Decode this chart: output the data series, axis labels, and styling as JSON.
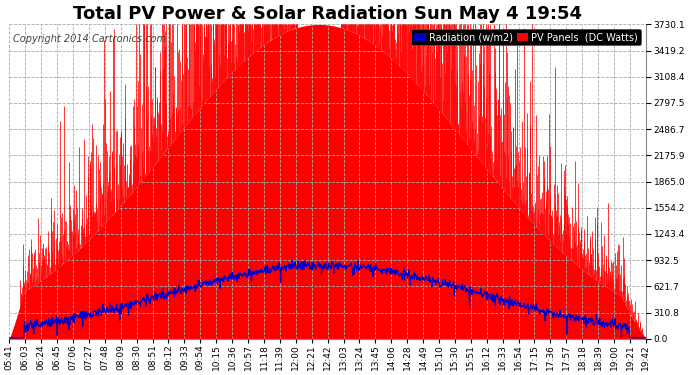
{
  "title": "Total PV Power & Solar Radiation Sun May 4 19:54",
  "copyright": "Copyright 2014 Cartronics.com",
  "legend_radiation": "Radiation (w/m2)",
  "legend_pv": "PV Panels  (DC Watts)",
  "bg_color": "#ffffff",
  "plot_bg_color": "#ffffff",
  "pv_color": "#ff0000",
  "radiation_color": "#0000cc",
  "ytick_vals": [
    0.0,
    310.8,
    621.7,
    932.5,
    1243.4,
    1554.2,
    1865.0,
    2175.9,
    2486.7,
    2797.5,
    3108.4,
    3419.2,
    3730.1
  ],
  "ymax": 3730.1,
  "ymin": 0.0,
  "xtick_labels": [
    "05:41",
    "06:03",
    "06:24",
    "06:45",
    "07:06",
    "07:27",
    "07:48",
    "08:09",
    "08:30",
    "08:51",
    "09:12",
    "09:33",
    "09:54",
    "10:15",
    "10:36",
    "10:57",
    "11:18",
    "11:39",
    "12:00",
    "12:21",
    "12:42",
    "13:03",
    "13:24",
    "13:45",
    "14:06",
    "14:28",
    "14:49",
    "15:10",
    "15:30",
    "15:51",
    "16:12",
    "16:33",
    "16:54",
    "17:15",
    "17:36",
    "17:57",
    "18:18",
    "18:39",
    "19:00",
    "19:21",
    "19:42"
  ],
  "grid_color": "#aaaaaa",
  "title_fontsize": 13,
  "tick_fontsize": 6.5,
  "legend_fontsize": 7,
  "copyright_fontsize": 7
}
